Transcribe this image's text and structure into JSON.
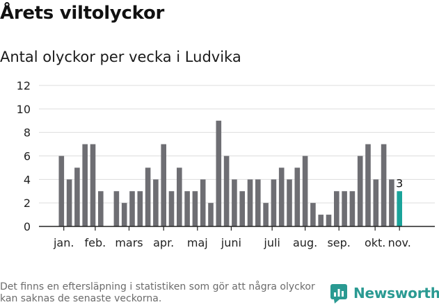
{
  "title": "Årets viltolyckor",
  "subtitle": "Antal olyckor per vecka i Ludvika",
  "footnote": "Det finns en eftersläpning i statistiken som gör att några olyckor kan saknas de senaste veckorna.",
  "brand": "Newsworthy",
  "colors": {
    "bar": "#6e6e73",
    "highlight": "#1aa39a",
    "grid": "#dddddd",
    "axis": "#222222",
    "brand": "#2a9a92"
  },
  "chart_data": {
    "type": "bar",
    "y_ticks": [
      0,
      2,
      4,
      6,
      8,
      10,
      12
    ],
    "ylim": [
      0,
      12
    ],
    "grid": true,
    "values": [
      6,
      4,
      5,
      7,
      7,
      3,
      0,
      3,
      2,
      3,
      3,
      5,
      4,
      7,
      3,
      5,
      3,
      3,
      4,
      2,
      9,
      6,
      4,
      3,
      4,
      4,
      2,
      4,
      5,
      4,
      5,
      6,
      2,
      1,
      1,
      3,
      3,
      3,
      6,
      7,
      4,
      7,
      4,
      3
    ],
    "highlight_index": 43,
    "highlight_label": "3",
    "month_labels": [
      {
        "label": "jan.",
        "bar_index": 0.3
      },
      {
        "label": "feb.",
        "bar_index": 4.3
      },
      {
        "label": "mars",
        "bar_index": 8.6
      },
      {
        "label": "apr.",
        "bar_index": 13.0
      },
      {
        "label": "maj",
        "bar_index": 17.3
      },
      {
        "label": "juni",
        "bar_index": 21.6
      },
      {
        "label": "juli",
        "bar_index": 26.8
      },
      {
        "label": "aug.",
        "bar_index": 31.0
      },
      {
        "label": "sep.",
        "bar_index": 35.3
      },
      {
        "label": "okt.",
        "bar_index": 39.9
      },
      {
        "label": "nov.",
        "bar_index": 43.0
      }
    ]
  }
}
